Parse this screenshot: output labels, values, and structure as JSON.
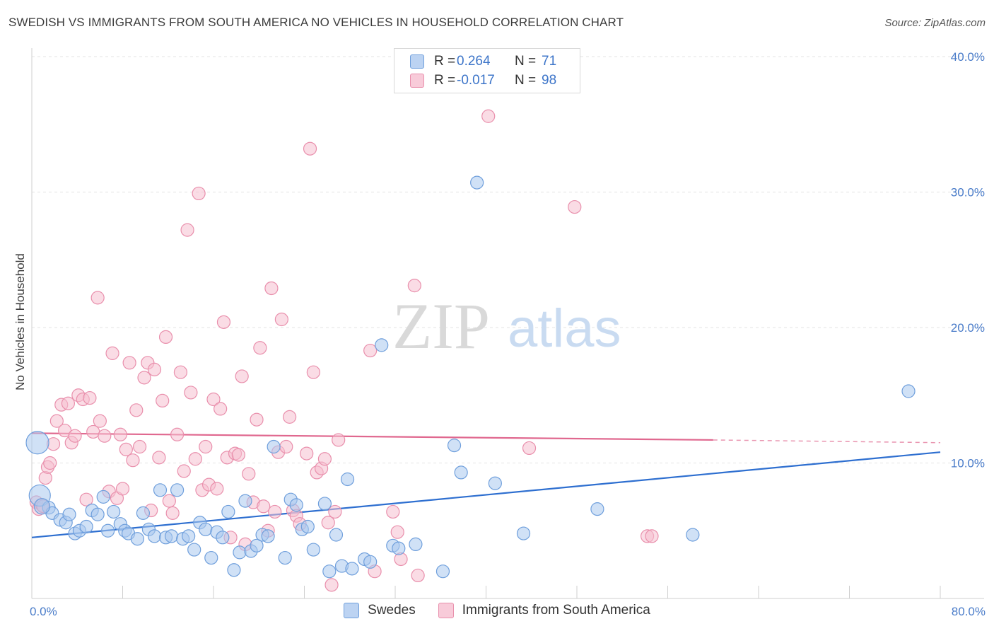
{
  "header": {
    "title": "SWEDISH VS IMMIGRANTS FROM SOUTH AMERICA NO VEHICLES IN HOUSEHOLD CORRELATION CHART",
    "source": "Source: ZipAtlas.com"
  },
  "legend": {
    "rows": [
      {
        "r_label": "R =",
        "r_value": "0.264",
        "n_label": "N =",
        "n_value": "71"
      },
      {
        "r_label": "R =",
        "r_value": "-0.017",
        "n_label": "N =",
        "n_value": "98"
      }
    ]
  },
  "bottom_legend": {
    "items": [
      {
        "label": "Swedes"
      },
      {
        "label": "Immigrants from South America"
      }
    ]
  },
  "watermark": {
    "zip": "ZIP",
    "atlas": "atlas"
  },
  "colors": {
    "blue_fill": "#a9c8ef",
    "blue_stroke": "#6f9fdc",
    "blue_line": "#2e6fd0",
    "pink_fill": "#f6bfd0",
    "pink_stroke": "#e98fac",
    "pink_line": "#e0688f"
  },
  "chart_data": {
    "type": "scatter",
    "title": "SWEDISH VS IMMIGRANTS FROM SOUTH AMERICA NO VEHICLES IN HOUSEHOLD CORRELATION CHART",
    "xlabel": "",
    "ylabel": "No Vehicles in Household",
    "xlim": [
      0,
      80
    ],
    "ylim": [
      0,
      40
    ],
    "x_tick_labels": [
      "0.0%",
      "80.0%"
    ],
    "y_ticks": [
      10,
      20,
      30,
      40
    ],
    "y_tick_labels": [
      "10.0%",
      "20.0%",
      "30.0%",
      "40.0%"
    ],
    "grid": true,
    "legend_position": "top-center",
    "series": [
      {
        "name": "Swedes",
        "color": "#6f9fdc",
        "trend": {
          "x": [
            0,
            80
          ],
          "y": [
            4.5,
            10.8
          ]
        },
        "points": [
          [
            0.5,
            11.5
          ],
          [
            0.7,
            7.6
          ],
          [
            1.5,
            6.7
          ],
          [
            1.8,
            6.3
          ],
          [
            2.5,
            5.8
          ],
          [
            3,
            5.6
          ],
          [
            3.3,
            6.2
          ],
          [
            3.8,
            4.8
          ],
          [
            4.2,
            5.0
          ],
          [
            4.8,
            5.3
          ],
          [
            5.3,
            6.5
          ],
          [
            5.8,
            6.2
          ],
          [
            6.3,
            7.5
          ],
          [
            6.7,
            5.0
          ],
          [
            7.2,
            6.4
          ],
          [
            7.8,
            5.5
          ],
          [
            8.2,
            5.0
          ],
          [
            8.5,
            4.8
          ],
          [
            9.3,
            4.4
          ],
          [
            9.8,
            6.3
          ],
          [
            10.3,
            5.1
          ],
          [
            10.8,
            4.6
          ],
          [
            11.3,
            8.0
          ],
          [
            11.8,
            4.5
          ],
          [
            12.3,
            4.6
          ],
          [
            12.8,
            8.0
          ],
          [
            13.3,
            4.4
          ],
          [
            13.8,
            4.6
          ],
          [
            14.3,
            3.6
          ],
          [
            14.8,
            5.6
          ],
          [
            15.3,
            5.1
          ],
          [
            15.8,
            3.0
          ],
          [
            16.3,
            4.9
          ],
          [
            16.8,
            4.5
          ],
          [
            17.3,
            6.4
          ],
          [
            17.8,
            2.1
          ],
          [
            18.3,
            3.4
          ],
          [
            18.8,
            7.2
          ],
          [
            19.3,
            3.5
          ],
          [
            19.8,
            3.9
          ],
          [
            20.3,
            4.7
          ],
          [
            20.8,
            4.6
          ],
          [
            21.3,
            11.2
          ],
          [
            22.3,
            3.0
          ],
          [
            22.8,
            7.3
          ],
          [
            23.3,
            6.9
          ],
          [
            23.8,
            5.1
          ],
          [
            24.3,
            5.3
          ],
          [
            24.8,
            3.6
          ],
          [
            25.8,
            7.0
          ],
          [
            26.2,
            2.0
          ],
          [
            26.8,
            4.7
          ],
          [
            27.3,
            2.4
          ],
          [
            27.8,
            8.8
          ],
          [
            28.2,
            2.2
          ],
          [
            29.3,
            2.9
          ],
          [
            29.8,
            2.7
          ],
          [
            30.8,
            18.7
          ],
          [
            31.8,
            3.9
          ],
          [
            32.3,
            3.7
          ],
          [
            33.8,
            4.0
          ],
          [
            36.2,
            2.0
          ],
          [
            37.2,
            11.3
          ],
          [
            37.8,
            9.3
          ],
          [
            39.2,
            30.7
          ],
          [
            40.8,
            8.5
          ],
          [
            43.3,
            4.8
          ],
          [
            49.8,
            6.6
          ],
          [
            58.2,
            4.7
          ],
          [
            77.2,
            15.3
          ],
          [
            0.9,
            6.8
          ]
        ]
      },
      {
        "name": "Immigrants from South America",
        "color": "#e98fac",
        "trend": {
          "x": [
            0,
            60
          ],
          "y": [
            12.2,
            11.7
          ],
          "dashed_to": {
            "x": 80,
            "y": 11.5
          }
        },
        "points": [
          [
            0.4,
            7.1
          ],
          [
            0.6,
            6.6
          ],
          [
            0.9,
            6.9
          ],
          [
            1.2,
            8.9
          ],
          [
            1.4,
            9.7
          ],
          [
            1.6,
            10.0
          ],
          [
            1.9,
            11.4
          ],
          [
            2.2,
            13.1
          ],
          [
            2.6,
            14.3
          ],
          [
            2.9,
            12.4
          ],
          [
            3.2,
            14.4
          ],
          [
            3.5,
            11.5
          ],
          [
            3.8,
            12.0
          ],
          [
            4.1,
            15.0
          ],
          [
            4.5,
            14.7
          ],
          [
            4.8,
            7.3
          ],
          [
            5.1,
            14.8
          ],
          [
            5.4,
            12.3
          ],
          [
            5.8,
            22.2
          ],
          [
            6.0,
            13.1
          ],
          [
            6.4,
            12.0
          ],
          [
            6.8,
            7.9
          ],
          [
            7.1,
            18.1
          ],
          [
            7.5,
            7.4
          ],
          [
            7.8,
            12.1
          ],
          [
            8.0,
            8.1
          ],
          [
            8.3,
            11.0
          ],
          [
            8.6,
            17.4
          ],
          [
            8.9,
            10.2
          ],
          [
            9.2,
            13.9
          ],
          [
            9.5,
            11.2
          ],
          [
            9.9,
            16.3
          ],
          [
            10.2,
            17.4
          ],
          [
            10.5,
            6.5
          ],
          [
            10.8,
            16.9
          ],
          [
            11.2,
            10.4
          ],
          [
            11.5,
            14.6
          ],
          [
            11.8,
            19.3
          ],
          [
            12.1,
            7.2
          ],
          [
            12.4,
            6.3
          ],
          [
            12.8,
            12.1
          ],
          [
            13.1,
            16.7
          ],
          [
            13.4,
            9.4
          ],
          [
            13.7,
            27.2
          ],
          [
            14.0,
            15.2
          ],
          [
            14.4,
            10.3
          ],
          [
            14.7,
            29.9
          ],
          [
            15.0,
            8.0
          ],
          [
            15.3,
            11.2
          ],
          [
            15.6,
            8.4
          ],
          [
            16.0,
            14.7
          ],
          [
            16.3,
            8.1
          ],
          [
            16.6,
            14.0
          ],
          [
            16.9,
            20.4
          ],
          [
            17.2,
            10.4
          ],
          [
            17.5,
            4.5
          ],
          [
            17.9,
            10.7
          ],
          [
            18.2,
            10.6
          ],
          [
            18.5,
            16.4
          ],
          [
            18.8,
            4.0
          ],
          [
            19.1,
            9.2
          ],
          [
            19.5,
            7.1
          ],
          [
            19.8,
            13.2
          ],
          [
            20.1,
            18.5
          ],
          [
            20.4,
            6.8
          ],
          [
            20.8,
            5.0
          ],
          [
            21.1,
            22.9
          ],
          [
            21.4,
            6.4
          ],
          [
            21.7,
            10.8
          ],
          [
            22.0,
            20.6
          ],
          [
            22.4,
            11.2
          ],
          [
            22.7,
            13.4
          ],
          [
            23.0,
            6.5
          ],
          [
            23.3,
            6.1
          ],
          [
            23.6,
            5.5
          ],
          [
            24.2,
            10.7
          ],
          [
            24.5,
            33.2
          ],
          [
            24.8,
            16.7
          ],
          [
            25.1,
            9.3
          ],
          [
            25.5,
            9.6
          ],
          [
            25.8,
            10.3
          ],
          [
            26.1,
            5.6
          ],
          [
            26.4,
            1.0
          ],
          [
            26.7,
            6.4
          ],
          [
            27.0,
            11.7
          ],
          [
            29.8,
            18.3
          ],
          [
            30.2,
            2.0
          ],
          [
            31.8,
            6.4
          ],
          [
            32.2,
            4.9
          ],
          [
            32.5,
            2.9
          ],
          [
            33.7,
            23.1
          ],
          [
            34.0,
            1.7
          ],
          [
            40.2,
            35.6
          ],
          [
            43.8,
            11.1
          ],
          [
            47.8,
            28.9
          ],
          [
            54.2,
            4.6
          ],
          [
            54.6,
            4.6
          ],
          [
            1.0,
            6.8
          ]
        ]
      }
    ]
  }
}
